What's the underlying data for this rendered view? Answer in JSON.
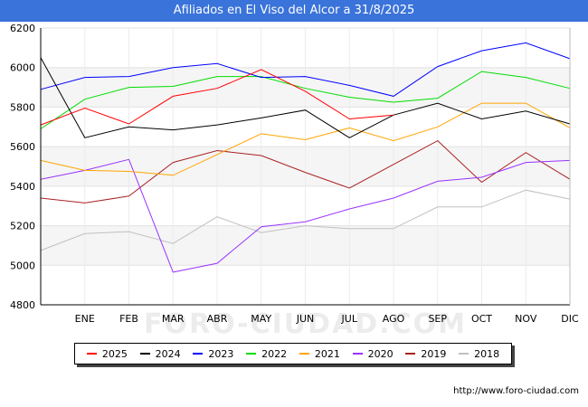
{
  "chart_data": {
    "type": "line",
    "title": "Afiliados en El Viso del Alcor a 31/8/2025",
    "xlabel": "",
    "ylabel": "",
    "categories": [
      "",
      "ENE",
      "FEB",
      "MAR",
      "ABR",
      "MAY",
      "JUN",
      "JUL",
      "AGO",
      "SEP",
      "OCT",
      "NOV",
      "DIC"
    ],
    "ylim": [
      4800,
      6200
    ],
    "yticks": [
      4800,
      5000,
      5200,
      5400,
      5600,
      5800,
      6000,
      6200
    ],
    "grid": true,
    "legend_position": "bottom",
    "watermark": "FORO-CIUDAD.COM",
    "series": [
      {
        "name": "2025",
        "color": "#ff0000",
        "values": [
          5710,
          5795,
          5715,
          5855,
          5895,
          5990,
          5880,
          5740,
          5760,
          null,
          null,
          null,
          null
        ]
      },
      {
        "name": "2024",
        "color": "#000000",
        "values": [
          6050,
          5645,
          5700,
          5685,
          5710,
          5745,
          5785,
          5645,
          5760,
          5820,
          5740,
          5780,
          5715
        ]
      },
      {
        "name": "2023",
        "color": "#0000ff",
        "values": [
          5890,
          5950,
          5955,
          6000,
          6020,
          5950,
          5955,
          5910,
          5855,
          6005,
          6085,
          6125,
          6045
        ]
      },
      {
        "name": "2022",
        "color": "#00dd00",
        "values": [
          5690,
          5840,
          5900,
          5905,
          5955,
          5955,
          5895,
          5850,
          5825,
          5845,
          5980,
          5950,
          5895
        ]
      },
      {
        "name": "2021",
        "color": "#ffa500",
        "values": [
          5530,
          5480,
          5475,
          5455,
          5560,
          5665,
          5635,
          5695,
          5630,
          5700,
          5820,
          5820,
          5695
        ]
      },
      {
        "name": "2020",
        "color": "#9933ff",
        "values": [
          5435,
          5480,
          5535,
          4965,
          5010,
          5195,
          5220,
          5285,
          5340,
          5425,
          5445,
          5520,
          5530
        ]
      },
      {
        "name": "2019",
        "color": "#aa2222",
        "values": [
          5340,
          5315,
          5350,
          5520,
          5580,
          5555,
          5470,
          5390,
          5510,
          5630,
          5420,
          5570,
          5435
        ]
      },
      {
        "name": "2018",
        "color": "#c0c0c0",
        "values": [
          5075,
          5160,
          5170,
          5110,
          5245,
          5165,
          5200,
          5185,
          5185,
          5295,
          5295,
          5380,
          5335
        ]
      }
    ]
  },
  "source_text": "http://www.foro-ciudad.com"
}
